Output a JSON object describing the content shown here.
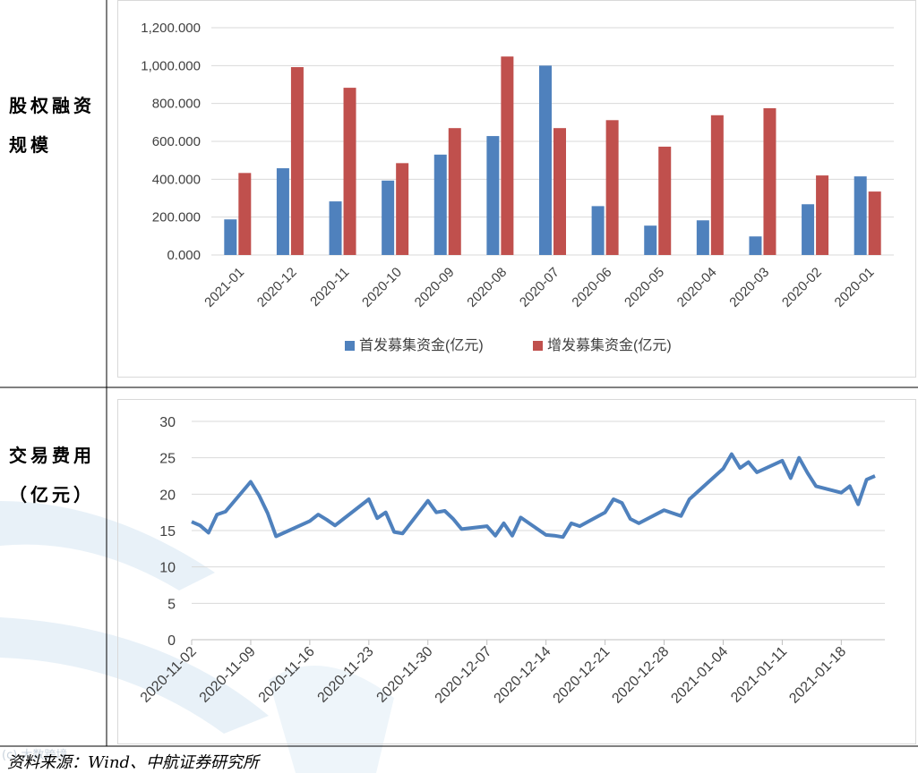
{
  "row_labels": {
    "equity": "股权融资规模",
    "equity_lines": [
      "股权融资",
      "规模"
    ],
    "fees_lines": [
      "交易费用",
      "（亿元）"
    ]
  },
  "source": "资料来源：Wind、中航证券研究所",
  "watermark": "(c) 大数跨境",
  "colors": {
    "ipo": "#4f81bd",
    "seo": "#c0504d",
    "line": "#4f81bd",
    "grid": "#d9d9d9"
  },
  "chart_data": [
    {
      "type": "bar",
      "categories": [
        "2021-01",
        "2020-12",
        "2020-11",
        "2020-10",
        "2020-09",
        "2020-08",
        "2020-07",
        "2020-06",
        "2020-05",
        "2020-04",
        "2020-03",
        "2020-02",
        "2020-01"
      ],
      "series": [
        {
          "name": "首发募集资金(亿元)",
          "values": [
            188,
            458,
            283,
            393,
            530,
            628,
            1000,
            258,
            155,
            183,
            98,
            268,
            415
          ]
        },
        {
          "name": "增发募集资金(亿元)",
          "values": [
            433,
            992,
            883,
            485,
            670,
            1048,
            670,
            712,
            572,
            738,
            775,
            420,
            335
          ]
        }
      ],
      "ylim": [
        0,
        1200
      ],
      "yticks": [
        "0.000",
        "200.000",
        "400.000",
        "600.000",
        "800.000",
        "1,000.000",
        "1,200.000"
      ],
      "grid": true,
      "legend": "bottom"
    },
    {
      "type": "line",
      "x": [
        "2020-11-02",
        "2020-11-03",
        "2020-11-04",
        "2020-11-05",
        "2020-11-06",
        "2020-11-09",
        "2020-11-10",
        "2020-11-11",
        "2020-11-12",
        "2020-11-16",
        "2020-11-17",
        "2020-11-18",
        "2020-11-19",
        "2020-11-23",
        "2020-11-24",
        "2020-11-25",
        "2020-11-26",
        "2020-11-27",
        "2020-11-30",
        "2020-12-01",
        "2020-12-02",
        "2020-12-03",
        "2020-12-04",
        "2020-12-07",
        "2020-12-08",
        "2020-12-09",
        "2020-12-10",
        "2020-12-11",
        "2020-12-14",
        "2020-12-15",
        "2020-12-16",
        "2020-12-17",
        "2020-12-18",
        "2020-12-21",
        "2020-12-22",
        "2020-12-23",
        "2020-12-24",
        "2020-12-25",
        "2020-12-28",
        "2020-12-29",
        "2020-12-30",
        "2020-12-31",
        "2021-01-04",
        "2021-01-05",
        "2021-01-06",
        "2021-01-07",
        "2021-01-08",
        "2021-01-11",
        "2021-01-12",
        "2021-01-13",
        "2021-01-14",
        "2021-01-15",
        "2021-01-18",
        "2021-01-19",
        "2021-01-20",
        "2021-01-21",
        "2021-01-22"
      ],
      "y": [
        16.2,
        15.7,
        14.7,
        17.2,
        17.6,
        21.7,
        19.8,
        17.4,
        14.2,
        16.3,
        17.2,
        16.5,
        15.7,
        19.3,
        16.7,
        17.5,
        14.8,
        14.6,
        19.1,
        17.5,
        17.7,
        16.6,
        15.2,
        15.6,
        14.3,
        16.0,
        14.3,
        16.8,
        14.4,
        14.3,
        14.1,
        16.0,
        15.6,
        17.5,
        19.3,
        18.8,
        16.6,
        16.0,
        17.8,
        17.4,
        17.0,
        19.3,
        23.5,
        25.5,
        23.6,
        24.4,
        23.0,
        24.6,
        22.2,
        25.0,
        22.9,
        21.1,
        20.2,
        21.1,
        18.6,
        22.0,
        22.5
      ],
      "xticks": [
        "2020-11-02",
        "2020-11-09",
        "2020-11-16",
        "2020-11-23",
        "2020-11-30",
        "2020-12-07",
        "2020-12-14",
        "2020-12-21",
        "2020-12-28",
        "2021-01-04",
        "2021-01-11",
        "2021-01-18"
      ],
      "ylim": [
        0,
        30
      ],
      "yticks": [
        "0",
        "5",
        "10",
        "15",
        "20",
        "25",
        "30"
      ],
      "grid": true
    }
  ]
}
